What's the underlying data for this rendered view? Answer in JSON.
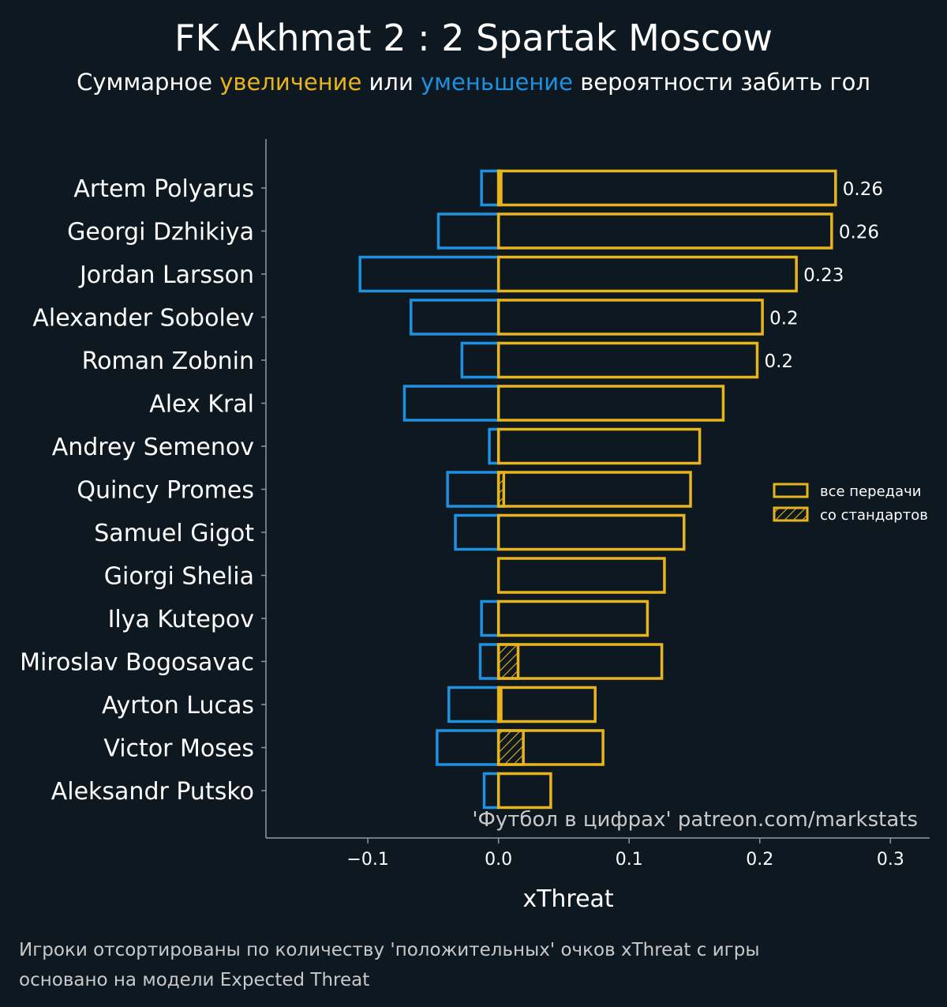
{
  "chart_data": {
    "type": "bar",
    "title": "FK Akhmat 2 : 2 Spartak Moscow",
    "subtitle": {
      "prefix": "Суммарное ",
      "increase": "увеличение",
      "middle": " или ",
      "decrease": "уменьшение",
      "suffix": " вероятности забить гол"
    },
    "xlabel": "xThreat",
    "xlim": [
      -0.178,
      0.33
    ],
    "xticks": [
      -0.1,
      0.0,
      0.1,
      0.2,
      0.3
    ],
    "xtick_labels": [
      "−0.1",
      "0.0",
      "0.1",
      "0.2",
      "0.3"
    ],
    "categories": [
      "Artem Polyarus",
      "Georgi Dzhikiya",
      "Jordan Larsson",
      "Alexander Sobolev",
      "Roman Zobnin",
      "Alex Kral",
      "Andrey Semenov",
      "Quincy Promes",
      "Samuel Gigot",
      "Giorgi Shelia",
      "Ilya Kutepov",
      "Miroslav Bogosavac",
      "Ayrton Lucas",
      "Victor Moses",
      "Aleksandr Putsko"
    ],
    "series": [
      {
        "name": "positive",
        "color": "#e7b41d",
        "values": [
          0.258,
          0.255,
          0.228,
          0.202,
          0.198,
          0.172,
          0.154,
          0.147,
          0.142,
          0.127,
          0.114,
          0.125,
          0.074,
          0.08,
          0.04
        ]
      },
      {
        "name": "negative",
        "color": "#1e90e0",
        "values": [
          -0.013,
          -0.046,
          -0.106,
          -0.067,
          -0.028,
          -0.072,
          -0.007,
          -0.039,
          -0.033,
          0,
          -0.013,
          -0.014,
          -0.038,
          -0.047,
          -0.011
        ]
      },
      {
        "name": "set_pieces",
        "color": "#e7b41d",
        "values": [
          0.002,
          0,
          0,
          0,
          0,
          0,
          0,
          0.004,
          0,
          0,
          0,
          0.015,
          0.002,
          0.019,
          0
        ]
      }
    ],
    "data_labels": [
      "0.26",
      "0.26",
      "0.23",
      "0.2",
      "0.2",
      "",
      "",
      "",
      "",
      "",
      "",
      "",
      "",
      "",
      ""
    ],
    "legend": {
      "position": "right",
      "items": [
        {
          "label": "все передачи",
          "style": "outline"
        },
        {
          "label": "со стандартов",
          "style": "hatched"
        }
      ]
    },
    "watermark": "'Футбол в цифрах' patreon.com/markstats",
    "footnotes": [
      "Игроки отсортированы по количеству 'положительных' очков xThreat с игры",
      "основано на модели Expected Threat"
    ]
  },
  "colors": {
    "background": "#0e1821",
    "axis": "#8a9aa4",
    "text": "#ffffff",
    "muted": "#c9c9c9"
  }
}
